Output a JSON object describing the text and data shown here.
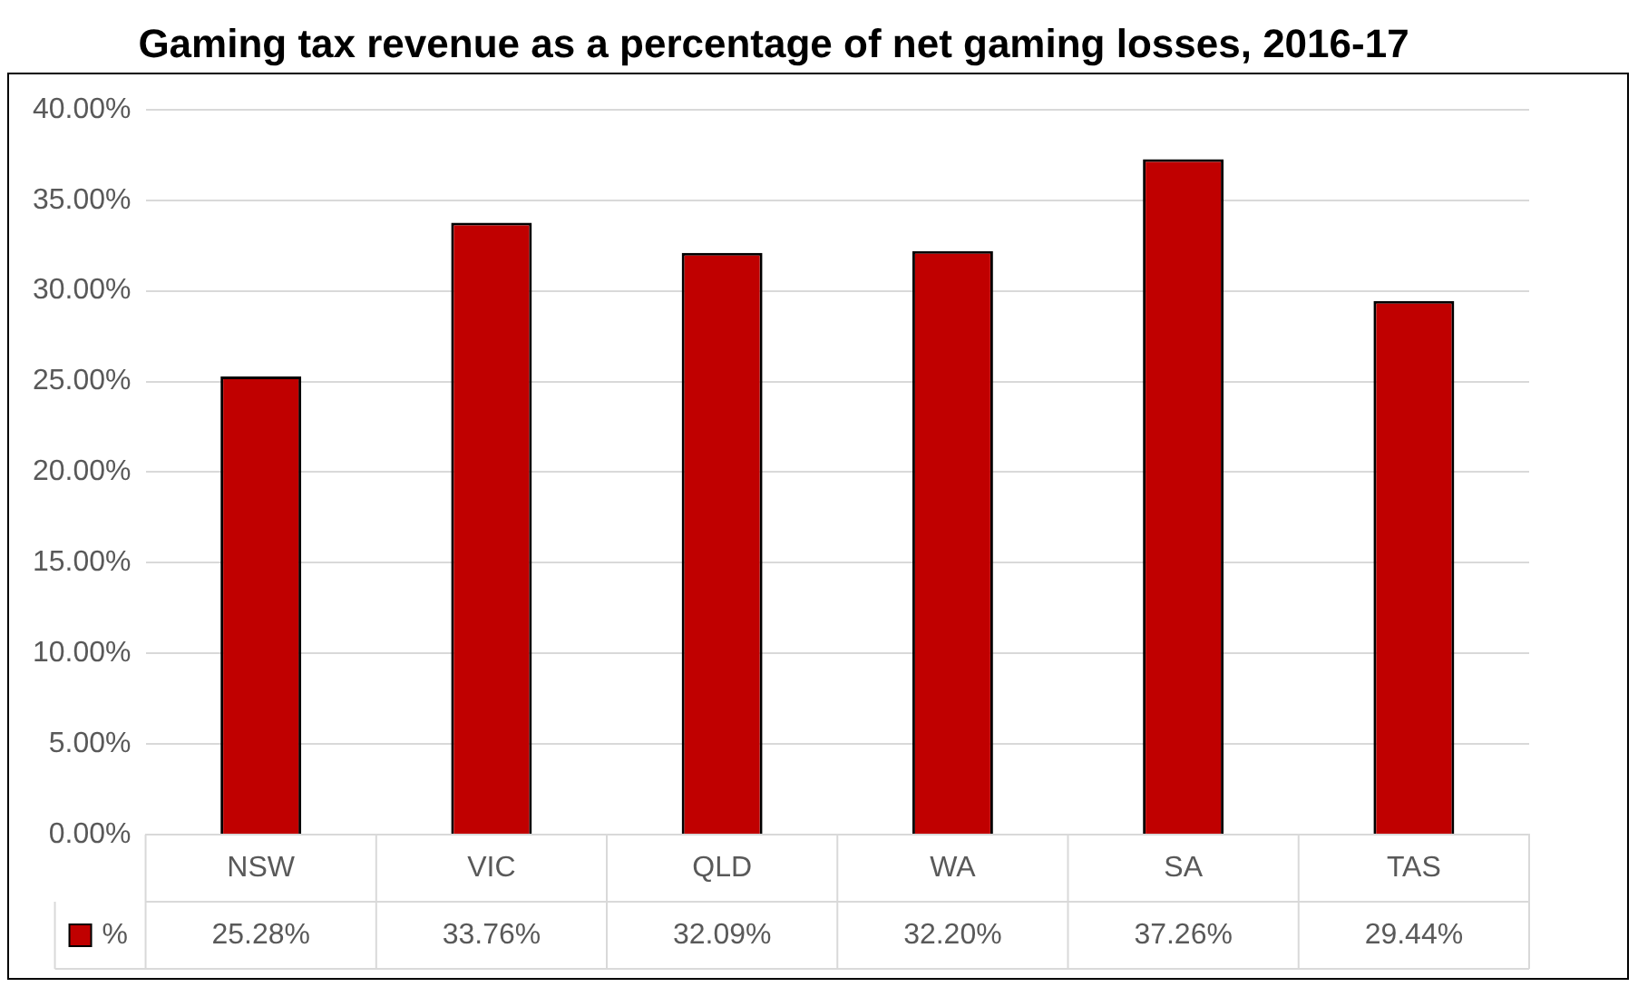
{
  "chart_data": {
    "type": "bar",
    "title": "Gaming tax revenue as a percentage of net gaming losses, 2016-17",
    "categories": [
      "NSW",
      "VIC",
      "QLD",
      "WA",
      "SA",
      "TAS"
    ],
    "series": [
      {
        "name": "%",
        "color": "#c00000",
        "values": [
          25.28,
          33.76,
          32.09,
          32.2,
          37.26,
          29.44
        ],
        "value_labels": [
          "25.28%",
          "33.76%",
          "32.09%",
          "32.20%",
          "37.26%",
          "29.44%"
        ]
      }
    ],
    "ylim": [
      0,
      40
    ],
    "yticks": [
      {
        "value": 0,
        "label": "0.00%"
      },
      {
        "value": 5,
        "label": "5.00%"
      },
      {
        "value": 10,
        "label": "10.00%"
      },
      {
        "value": 15,
        "label": "15.00%"
      },
      {
        "value": 20,
        "label": "20.00%"
      },
      {
        "value": 25,
        "label": "25.00%"
      },
      {
        "value": 30,
        "label": "30.00%"
      },
      {
        "value": 35,
        "label": "35.00%"
      },
      {
        "value": 40,
        "label": "40.00%"
      }
    ],
    "grid": "y",
    "legend": "bottom"
  }
}
